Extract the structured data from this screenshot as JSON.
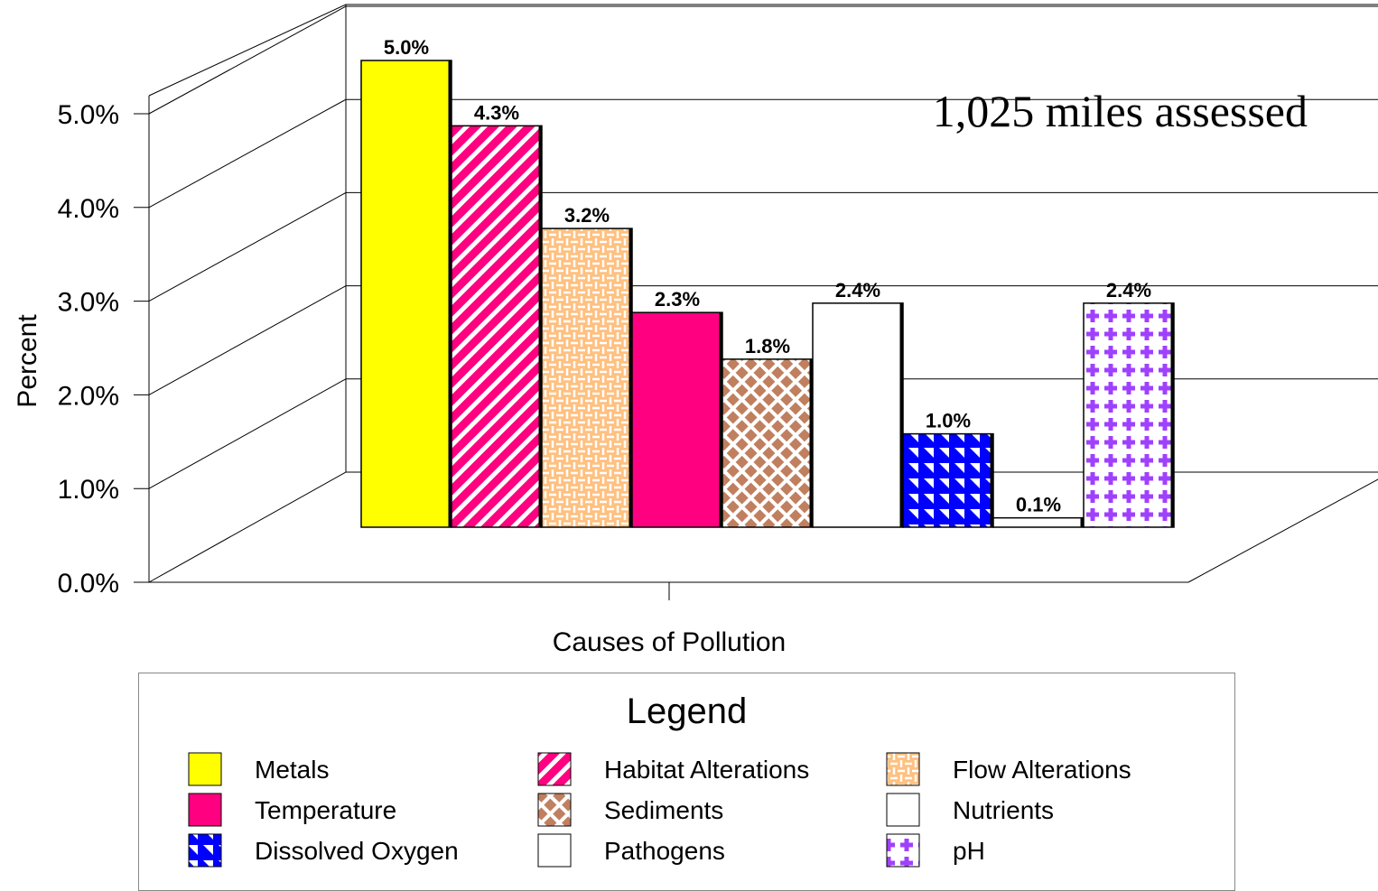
{
  "chart_data": {
    "type": "bar",
    "ylabel": "Percent",
    "xlabel": "Causes of Pollution",
    "annotation": "1,025 miles assessed",
    "ylim": [
      0,
      5
    ],
    "yticks": [
      "0.0%",
      "1.0%",
      "2.0%",
      "3.0%",
      "4.0%",
      "5.0%"
    ],
    "grid": true,
    "legend_position": "bottom",
    "categories": [
      "Metals",
      "Habitat Alterations",
      "Flow Alterations",
      "Temperature",
      "Sediments",
      "Nutrients",
      "Dissolved Oxygen",
      "Pathogens",
      "pH"
    ],
    "values": [
      5.0,
      4.3,
      3.2,
      2.3,
      1.8,
      2.4,
      1.0,
      0.1,
      2.4
    ],
    "value_labels": [
      "5.0%",
      "4.3%",
      "3.2%",
      "2.3%",
      "1.8%",
      "2.4%",
      "1.0%",
      "0.1%",
      "2.4%"
    ],
    "colors": [
      "#ffff00",
      "#ff0080",
      "#ffc080",
      "#ff0080",
      "#c08060",
      "#ffffff",
      "#0000ff",
      "#ffffff",
      "#a040ff"
    ],
    "patterns": [
      "solid",
      "diagonal-stripes",
      "weave",
      "solid",
      "lattice",
      "none",
      "triangles",
      "none",
      "plus"
    ]
  },
  "legend": {
    "title": "Legend",
    "items": [
      "Metals",
      "Habitat Alterations",
      "Flow Alterations",
      "Temperature",
      "Sediments",
      "Nutrients",
      "Dissolved Oxygen",
      "Pathogens",
      "pH"
    ]
  }
}
